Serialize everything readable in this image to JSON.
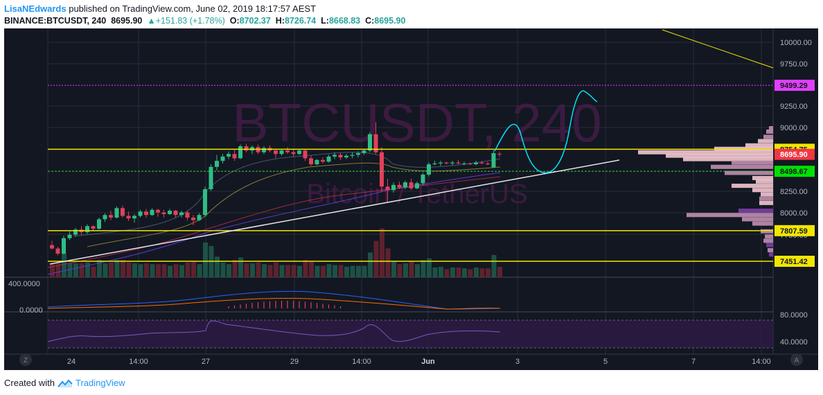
{
  "header": {
    "author": "LisaNEdwards",
    "published_text": "published on TradingView.com, June 02, 2019 18:17:57 AEST",
    "symbol_line": "BINANCE:BTCUSDT, 240",
    "last": "8695.90",
    "change": "▲+151.83 (+1.78%)",
    "o_label": "O:",
    "o": "8702.37",
    "h_label": "H:",
    "h": "8726.74",
    "l_label": "L:",
    "l": "8668.83",
    "c_label": "C:",
    "c": "8695.90"
  },
  "watermark": {
    "symbol": "BTCUSDT, 240",
    "name": "Bitcoin / TetherUS"
  },
  "footer": {
    "created_with": "Created with",
    "brand": "TradingView"
  },
  "colors": {
    "up": "#2ebd85",
    "down": "#e0405a",
    "bg": "#131722",
    "hline_yellow": "#f2e600",
    "magenta": "#e040fb",
    "green_line": "#3fd63f",
    "cyan": "#00e5ff"
  },
  "chart_data": [
    {
      "type": "candlestick",
      "ylim": [
        7380,
        10100
      ],
      "x_ticks": [
        "24",
        "14:00",
        "27",
        "29",
        "14:00",
        "Jun",
        "3",
        "5",
        "7",
        "14:00"
      ],
      "y_ticks": [
        "10000.00",
        "9750.00",
        "9250.00",
        "9000.00",
        "8250.00",
        "8000.00",
        "7750.00"
      ],
      "price_labels": [
        {
          "value": "9499.29",
          "color": "#e040fb"
        },
        {
          "value": "8754.75",
          "color": "#f2e600"
        },
        {
          "value": "8695.90",
          "color": "#f23645"
        },
        {
          "value": "8498.67",
          "color": "#00e000"
        },
        {
          "value": "7807.59",
          "color": "#f2e600"
        },
        {
          "value": "7451.42",
          "color": "#f2e600"
        }
      ],
      "horizontal_lines": [
        9499.29,
        8754.75,
        8498.67,
        7807.59,
        7451.42
      ],
      "candles": [
        [
          7640,
          7690,
          7590,
          7600
        ],
        [
          7600,
          7620,
          7520,
          7540
        ],
        [
          7540,
          7750,
          7530,
          7720
        ],
        [
          7720,
          7800,
          7700,
          7760
        ],
        [
          7760,
          7840,
          7740,
          7820
        ],
        [
          7820,
          7860,
          7760,
          7790
        ],
        [
          7790,
          7880,
          7770,
          7860
        ],
        [
          7860,
          7870,
          7810,
          7830
        ],
        [
          7830,
          7960,
          7820,
          7940
        ],
        [
          7940,
          8010,
          7910,
          7990
        ],
        [
          7990,
          8040,
          7930,
          7960
        ],
        [
          7960,
          8090,
          7950,
          8070
        ],
        [
          8070,
          8100,
          7960,
          7980
        ],
        [
          7980,
          8030,
          7920,
          7950
        ],
        [
          7950,
          8000,
          7900,
          7980
        ],
        [
          7980,
          8050,
          7960,
          8030
        ],
        [
          8030,
          8060,
          7960,
          7990
        ],
        [
          7990,
          8070,
          7980,
          8050
        ],
        [
          8050,
          8060,
          7970,
          8020
        ],
        [
          8020,
          8050,
          7960,
          8000
        ],
        [
          8000,
          8060,
          7990,
          8040
        ],
        [
          8040,
          8050,
          7960,
          7990
        ],
        [
          7990,
          8040,
          7960,
          8020
        ],
        [
          8020,
          8040,
          7930,
          7960
        ],
        [
          7960,
          7990,
          7870,
          7930
        ],
        [
          7930,
          8010,
          7920,
          7990
        ],
        [
          7990,
          8320,
          7970,
          8290
        ],
        [
          8290,
          8580,
          8270,
          8550
        ],
        [
          8550,
          8690,
          8510,
          8620
        ],
        [
          8620,
          8700,
          8590,
          8670
        ],
        [
          8670,
          8730,
          8640,
          8700
        ],
        [
          8700,
          8760,
          8620,
          8650
        ],
        [
          8650,
          8810,
          8640,
          8790
        ],
        [
          8790,
          8820,
          8720,
          8740
        ],
        [
          8740,
          8800,
          8700,
          8780
        ],
        [
          8780,
          8810,
          8700,
          8720
        ],
        [
          8720,
          8790,
          8700,
          8770
        ],
        [
          8770,
          8800,
          8720,
          8740
        ],
        [
          8740,
          8760,
          8650,
          8700
        ],
        [
          8700,
          8760,
          8680,
          8740
        ],
        [
          8740,
          8780,
          8700,
          8720
        ],
        [
          8720,
          8750,
          8670,
          8700
        ],
        [
          8700,
          8760,
          8690,
          8740
        ],
        [
          8740,
          8760,
          8620,
          8650
        ],
        [
          8650,
          8680,
          8560,
          8580
        ],
        [
          8580,
          8640,
          8570,
          8630
        ],
        [
          8630,
          8660,
          8590,
          8610
        ],
        [
          8610,
          8690,
          8600,
          8670
        ],
        [
          8670,
          8720,
          8640,
          8690
        ],
        [
          8690,
          8710,
          8630,
          8660
        ],
        [
          8660,
          8700,
          8640,
          8680
        ],
        [
          8680,
          8720,
          8650,
          8690
        ],
        [
          8690,
          8730,
          8660,
          8710
        ],
        [
          8710,
          8760,
          8690,
          8740
        ],
        [
          8740,
          8950,
          8720,
          8930
        ],
        [
          8930,
          9070,
          8700,
          8720
        ],
        [
          8720,
          8780,
          8260,
          8320
        ],
        [
          8320,
          8410,
          8130,
          8280
        ],
        [
          8280,
          8370,
          8250,
          8340
        ],
        [
          8340,
          8380,
          8290,
          8310
        ],
        [
          8310,
          8390,
          8290,
          8370
        ],
        [
          8370,
          8410,
          8280,
          8300
        ],
        [
          8300,
          8380,
          8290,
          8360
        ],
        [
          8360,
          8480,
          8340,
          8460
        ],
        [
          8460,
          8600,
          8440,
          8580
        ],
        [
          8580,
          8620,
          8570,
          8590
        ],
        [
          8590,
          8620,
          8560,
          8600
        ],
        [
          8600,
          8610,
          8580,
          8590
        ],
        [
          8590,
          8620,
          8570,
          8600
        ],
        [
          8600,
          8630,
          8580,
          8590
        ],
        [
          8590,
          8610,
          8570,
          8590
        ],
        [
          8590,
          8600,
          8570,
          8580
        ],
        [
          8580,
          8620,
          8570,
          8600
        ],
        [
          8600,
          8620,
          8580,
          8590
        ],
        [
          8590,
          8610,
          8570,
          8580
        ],
        [
          8544,
          8740,
          8540,
          8710
        ],
        [
          8702,
          8727,
          8669,
          8696
        ]
      ],
      "oscillator_axis": [
        "400.0000",
        "0.0000"
      ],
      "rsi_axis": [
        "80.0000",
        "40.0000"
      ]
    }
  ]
}
